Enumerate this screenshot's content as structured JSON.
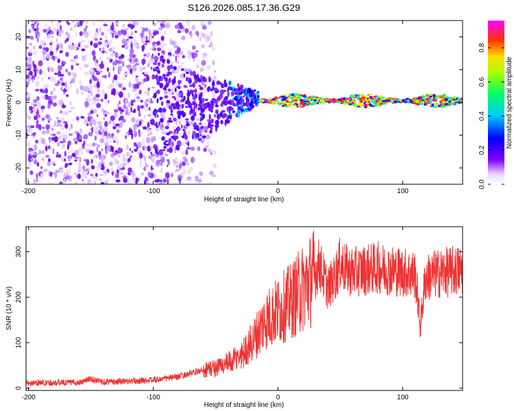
{
  "figure": {
    "title": "S126.2026.085.17.36.G29"
  },
  "chart_data": [
    {
      "type": "heatmap",
      "title": "S126.2026.085.17.36.G29",
      "xlabel": "Height of straight line (km)",
      "ylabel": "Frequency (Hz)",
      "xlim": [
        -202,
        148
      ],
      "ylim": [
        -25,
        25
      ],
      "x_ticks": [
        -200,
        -100,
        0,
        100
      ],
      "x_tick_labels": [
        "-200",
        "-100",
        "0",
        "100"
      ],
      "y_ticks": [
        -20,
        -10,
        0,
        10,
        20
      ],
      "y_tick_labels": [
        "-20",
        "-10",
        "0",
        "10",
        "20"
      ],
      "grid": false,
      "colorbar": {
        "label": "Normalized spectral amplitude",
        "range": [
          0,
          0.96
        ],
        "ticks": [
          0,
          0.2,
          0.4,
          0.6,
          0.8
        ],
        "tick_labels": [
          "0.0",
          "0.2",
          "0.4",
          "0.6",
          "0.8"
        ],
        "colormap": [
          "#ffffff",
          "#7f00ff",
          "#0000ff",
          "#00ffff",
          "#00ff00",
          "#ffff00",
          "#ff8000",
          "#ff0000",
          "#ff00ff"
        ]
      },
      "features": {
        "scattered_noise_x_range": [
          -202,
          -50
        ],
        "transition_x_range": [
          -100,
          -15
        ],
        "signal_band_x_range": [
          -15,
          148
        ],
        "signal_band_frequency": 0.5
      }
    },
    {
      "type": "line",
      "xlabel": "Height of straight line (km)",
      "ylabel": "SNR (10 * v/v)",
      "xlim": [
        -202,
        148
      ],
      "ylim": [
        -5,
        355
      ],
      "x_ticks": [
        -200,
        -100,
        0,
        100
      ],
      "x_tick_labels": [
        "-200",
        "-100",
        "0",
        "100"
      ],
      "y_ticks": [
        0,
        100,
        200,
        300
      ],
      "y_tick_labels": [
        "0",
        "100",
        "200",
        "300"
      ],
      "grid": false,
      "series_color": "#ee3333",
      "x": [
        -202,
        -180,
        -160,
        -150,
        -140,
        -120,
        -100,
        -80,
        -60,
        -50,
        -40,
        -30,
        -20,
        -10,
        0,
        10,
        20,
        30,
        33,
        36,
        40,
        45,
        50,
        55,
        60,
        70,
        80,
        90,
        100,
        110,
        112,
        114,
        118,
        125,
        135,
        148
      ],
      "values": [
        12,
        12,
        13,
        20,
        14,
        15,
        18,
        25,
        40,
        45,
        55,
        70,
        105,
        150,
        170,
        190,
        220,
        250,
        275,
        250,
        220,
        240,
        275,
        260,
        255,
        260,
        265,
        260,
        255,
        250,
        200,
        135,
        240,
        250,
        255,
        260
      ]
    }
  ]
}
